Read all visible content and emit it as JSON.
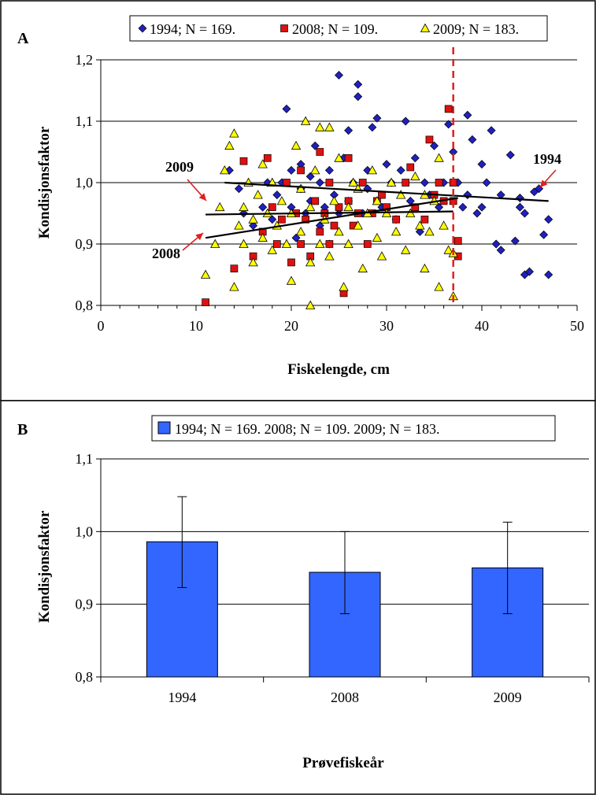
{
  "colors": {
    "y1994": "#2020c0",
    "y2008": "#e01010",
    "y2009": "#ffff00",
    "bar": "#3366ff",
    "cutoff_line": "#e02020",
    "arrow": "#e02020"
  },
  "chart_data": [
    {
      "panel": "A",
      "type": "scatter",
      "xlabel": "Fiskelengde, cm",
      "ylabel": "Kondisjonsfaktor",
      "xlim": [
        0,
        50
      ],
      "ylim": [
        0.8,
        1.2
      ],
      "xticks": [
        "0",
        "10",
        "20",
        "30",
        "40",
        "50"
      ],
      "yticks": [
        "0,8",
        "0,9",
        "1,0",
        "1,1",
        "1,2"
      ],
      "grid": "horizontal",
      "legend_position": "top",
      "cutoff_x": 37,
      "series": [
        {
          "name": "1994; N = 169.",
          "marker": "diamond",
          "points": [
            [
              13.5,
              1.02
            ],
            [
              14.5,
              0.99
            ],
            [
              15,
              0.95
            ],
            [
              16,
              0.93
            ],
            [
              17,
              0.96
            ],
            [
              17.5,
              1.0
            ],
            [
              18,
              0.94
            ],
            [
              18.5,
              0.98
            ],
            [
              19,
              1.0
            ],
            [
              19.5,
              1.12
            ],
            [
              20,
              0.96
            ],
            [
              20,
              1.02
            ],
            [
              20.5,
              0.91
            ],
            [
              21,
              0.99
            ],
            [
              21,
              1.03
            ],
            [
              21.5,
              0.95
            ],
            [
              22,
              1.01
            ],
            [
              22,
              0.97
            ],
            [
              22.5,
              1.06
            ],
            [
              23,
              0.93
            ],
            [
              23,
              1.0
            ],
            [
              23.5,
              0.96
            ],
            [
              24,
              1.02
            ],
            [
              24,
              0.9
            ],
            [
              24.5,
              0.98
            ],
            [
              25,
              1.175
            ],
            [
              25,
              0.95
            ],
            [
              25.5,
              1.04
            ],
            [
              26,
              1.085
            ],
            [
              26,
              0.97
            ],
            [
              26.5,
              1.0
            ],
            [
              27,
              1.16
            ],
            [
              27,
              1.14
            ],
            [
              27.5,
              0.95
            ],
            [
              28,
              1.02
            ],
            [
              28,
              0.99
            ],
            [
              28.5,
              1.09
            ],
            [
              29,
              1.105
            ],
            [
              29.5,
              0.96
            ],
            [
              30,
              1.03
            ],
            [
              30.5,
              1.0
            ],
            [
              31,
              0.94
            ],
            [
              31.5,
              1.02
            ],
            [
              32,
              1.1
            ],
            [
              32.5,
              0.97
            ],
            [
              33,
              1.04
            ],
            [
              33.5,
              0.92
            ],
            [
              34,
              1.0
            ],
            [
              34.5,
              0.98
            ],
            [
              35,
              1.06
            ],
            [
              35.5,
              0.96
            ],
            [
              36,
              1.0
            ],
            [
              36.5,
              1.095
            ],
            [
              37,
              1.05
            ],
            [
              37.5,
              1.0
            ],
            [
              38,
              0.96
            ],
            [
              38.5,
              0.98
            ],
            [
              38.5,
              1.11
            ],
            [
              39,
              1.07
            ],
            [
              39.5,
              0.95
            ],
            [
              40,
              1.03
            ],
            [
              40,
              0.96
            ],
            [
              40.5,
              1.0
            ],
            [
              41,
              1.085
            ],
            [
              41.5,
              0.9
            ],
            [
              42,
              0.98
            ],
            [
              42,
              0.89
            ],
            [
              43,
              1.045
            ],
            [
              43.5,
              0.905
            ],
            [
              44,
              0.975
            ],
            [
              44,
              0.96
            ],
            [
              44.5,
              0.95
            ],
            [
              44.5,
              0.85
            ],
            [
              45,
              0.855
            ],
            [
              45.5,
              0.985
            ],
            [
              46,
              0.99
            ],
            [
              46.5,
              0.915
            ],
            [
              47,
              0.94
            ],
            [
              47,
              0.85
            ]
          ]
        },
        {
          "name": "2008; N = 109.",
          "marker": "square",
          "points": [
            [
              11,
              0.805
            ],
            [
              14,
              0.86
            ],
            [
              15,
              1.035
            ],
            [
              16,
              0.88
            ],
            [
              17,
              0.92
            ],
            [
              17.5,
              1.04
            ],
            [
              18,
              0.96
            ],
            [
              18.5,
              0.9
            ],
            [
              19,
              0.94
            ],
            [
              19.5,
              1.0
            ],
            [
              20,
              0.87
            ],
            [
              20.5,
              0.95
            ],
            [
              21,
              0.9
            ],
            [
              21,
              1.02
            ],
            [
              21.5,
              0.94
            ],
            [
              22,
              0.88
            ],
            [
              22.5,
              0.97
            ],
            [
              23,
              0.92
            ],
            [
              23,
              1.05
            ],
            [
              23.5,
              0.95
            ],
            [
              24,
              0.9
            ],
            [
              24,
              1.0
            ],
            [
              24.5,
              0.93
            ],
            [
              25,
              0.96
            ],
            [
              25.5,
              0.82
            ],
            [
              26,
              0.97
            ],
            [
              26,
              1.04
            ],
            [
              26.5,
              0.93
            ],
            [
              27,
              0.95
            ],
            [
              27.5,
              1.0
            ],
            [
              28,
              0.9
            ],
            [
              28.5,
              0.95
            ],
            [
              29,
              0.97
            ],
            [
              29.5,
              0.98
            ],
            [
              30,
              0.96
            ],
            [
              31,
              0.94
            ],
            [
              32,
              1.0
            ],
            [
              32.5,
              1.025
            ],
            [
              33,
              0.96
            ],
            [
              34,
              0.94
            ],
            [
              34.5,
              1.07
            ],
            [
              35,
              0.98
            ],
            [
              35.5,
              1.0
            ],
            [
              36,
              0.97
            ],
            [
              36.5,
              1.12
            ],
            [
              37,
              1.0
            ],
            [
              37,
              0.97
            ],
            [
              37.5,
              0.905
            ],
            [
              37.5,
              0.88
            ]
          ]
        },
        {
          "name": "2009; N = 183.",
          "marker": "triangle",
          "points": [
            [
              11,
              0.85
            ],
            [
              12,
              0.9
            ],
            [
              12.5,
              0.96
            ],
            [
              13,
              1.02
            ],
            [
              13.5,
              1.06
            ],
            [
              14,
              1.08
            ],
            [
              14,
              0.83
            ],
            [
              14.5,
              0.93
            ],
            [
              15,
              0.96
            ],
            [
              15,
              0.9
            ],
            [
              15.5,
              1.0
            ],
            [
              16,
              0.94
            ],
            [
              16,
              0.87
            ],
            [
              16.5,
              0.98
            ],
            [
              17,
              0.91
            ],
            [
              17,
              1.03
            ],
            [
              17.5,
              0.95
            ],
            [
              18,
              0.89
            ],
            [
              18,
              1.0
            ],
            [
              18.5,
              0.93
            ],
            [
              19,
              0.97
            ],
            [
              19.5,
              0.9
            ],
            [
              20,
              0.84
            ],
            [
              20,
              0.95
            ],
            [
              20.5,
              1.06
            ],
            [
              21,
              0.92
            ],
            [
              21,
              0.99
            ],
            [
              21.5,
              1.1
            ],
            [
              22,
              0.8
            ],
            [
              22,
              0.87
            ],
            [
              22,
              0.96
            ],
            [
              22.5,
              1.02
            ],
            [
              23,
              0.9
            ],
            [
              23,
              1.09
            ],
            [
              23.5,
              0.94
            ],
            [
              24,
              0.88
            ],
            [
              24,
              1.09
            ],
            [
              24.5,
              0.97
            ],
            [
              25,
              0.92
            ],
            [
              25,
              1.04
            ],
            [
              25.5,
              0.83
            ],
            [
              26,
              0.96
            ],
            [
              26,
              0.9
            ],
            [
              26.5,
              1.0
            ],
            [
              27,
              0.93
            ],
            [
              27,
              0.99
            ],
            [
              27.5,
              0.86
            ],
            [
              28,
              0.95
            ],
            [
              28.5,
              1.02
            ],
            [
              29,
              0.91
            ],
            [
              29,
              0.97
            ],
            [
              29.5,
              0.88
            ],
            [
              30,
              0.95
            ],
            [
              30.5,
              1.0
            ],
            [
              31,
              0.92
            ],
            [
              31.5,
              0.98
            ],
            [
              32,
              0.89
            ],
            [
              32.5,
              0.95
            ],
            [
              33,
              1.01
            ],
            [
              33.5,
              0.93
            ],
            [
              34,
              0.98
            ],
            [
              34,
              0.86
            ],
            [
              34.5,
              0.92
            ],
            [
              35,
              0.97
            ],
            [
              35.5,
              1.04
            ],
            [
              35.5,
              0.83
            ],
            [
              36,
              0.93
            ],
            [
              36.5,
              0.89
            ],
            [
              37,
              0.885
            ],
            [
              37,
              0.815
            ]
          ]
        }
      ],
      "trendlines": [
        {
          "name": "1994",
          "x": [
            13,
            47
          ],
          "y": [
            1.0,
            0.97
          ]
        },
        {
          "name": "2008",
          "x": [
            11,
            37.5
          ],
          "y": [
            0.91,
            0.975
          ]
        },
        {
          "name": "2009",
          "x": [
            11,
            37
          ],
          "y": [
            0.948,
            0.953
          ]
        }
      ],
      "annotations": [
        {
          "text": "2009"
        },
        {
          "text": "2008"
        },
        {
          "text": "1994"
        }
      ]
    },
    {
      "panel": "B",
      "type": "bar",
      "xlabel": "Prøvefiskeår",
      "ylabel": "Kondisjonsfaktor",
      "ylim": [
        0.8,
        1.1
      ],
      "yticks": [
        "0,8",
        "0,9",
        "1,0",
        "1,1"
      ],
      "grid": "horizontal",
      "legend_position": "top",
      "legend": [
        "1994; N = 169. 2008; N = 109. 2009; N = 183."
      ],
      "categories": [
        "1994",
        "2008",
        "2009"
      ],
      "values": [
        0.986,
        0.944,
        0.95
      ],
      "error_low": [
        0.923,
        0.887,
        0.887
      ],
      "error_high": [
        1.048,
        1.0,
        1.013
      ]
    }
  ]
}
